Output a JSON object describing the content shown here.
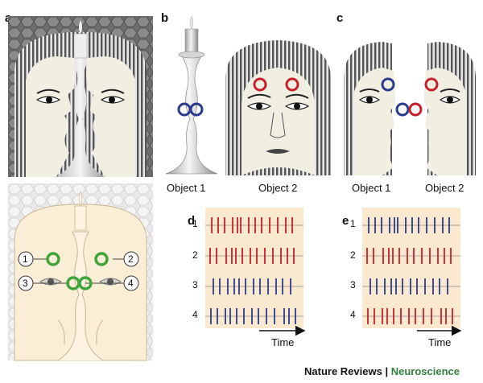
{
  "panels": {
    "a": "a",
    "b": "b",
    "c": "c",
    "d": "d",
    "e": "e"
  },
  "objects": {
    "b_object1": "Object 1",
    "b_object2": "Object 2",
    "c_object1": "Object 1",
    "c_object2": "Object 2"
  },
  "neurons": [
    "1",
    "2",
    "3",
    "4"
  ],
  "raster_rows": [
    "1",
    "2",
    "3",
    "4"
  ],
  "time_label": "Time",
  "brand": {
    "journal": "Nature Reviews",
    "separator": " | ",
    "field": "Neuroscience"
  },
  "colors": {
    "red_spike": "#c8202a",
    "blue_spike": "#2a3a8c",
    "green_ring": "#3fa53a",
    "raster_bg": "#fbe9cf"
  }
}
